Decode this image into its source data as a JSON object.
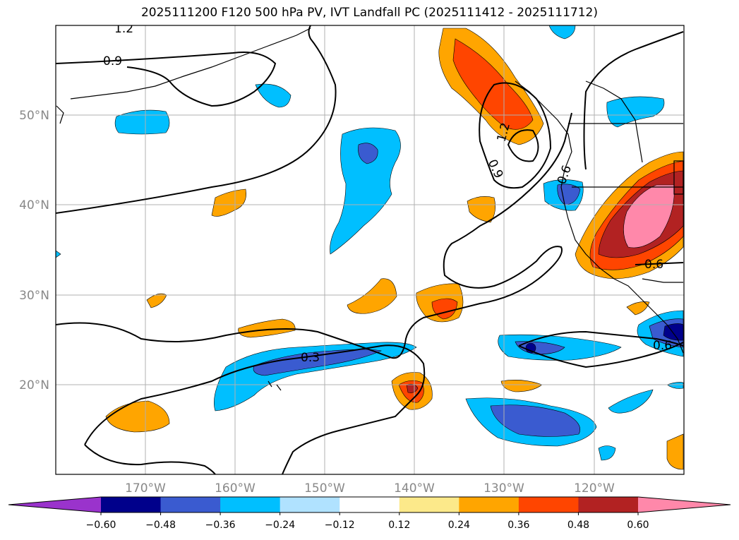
{
  "title": "2025111200 F120 500 hPa PV, IVT Landfall PC (2025111412 - 2025111712)",
  "map": {
    "lon_range": [
      -180,
      -110
    ],
    "lat_range": [
      10,
      60
    ],
    "lon_ticks": [
      -170,
      -160,
      -150,
      -140,
      -130,
      -120
    ],
    "lon_tick_labels": [
      "170°W",
      "160°W",
      "150°W",
      "140°W",
      "130°W",
      "120°W"
    ],
    "lat_ticks": [
      20,
      30,
      40,
      50
    ],
    "lat_tick_labels": [
      "20°N",
      "30°N",
      "40°N",
      "50°N"
    ],
    "contour_labels": [
      "1.2",
      "0.9",
      "1.2",
      "0.9",
      "0.6",
      "0.6",
      "0.3",
      "0.6"
    ]
  },
  "colorbar": {
    "levels": [
      -0.6,
      -0.48,
      -0.36,
      -0.24,
      -0.12,
      0.12,
      0.24,
      0.36,
      0.48,
      0.6
    ],
    "tick_labels": [
      "−0.60",
      "−0.48",
      "−0.36",
      "−0.24",
      "−0.12",
      "0.12",
      "0.24",
      "0.36",
      "0.48",
      "0.60"
    ],
    "colors": [
      "#9a33cc",
      "#00008b",
      "#3a5bd0",
      "#00bfff",
      "#b0e2ff",
      "#ffffff",
      "#fce98a",
      "#ffa500",
      "#ff4500",
      "#b22222",
      "#ff88aa"
    ]
  },
  "colors": {
    "map_border": "#000000",
    "grid": "#b0b0b0",
    "coast": "#000000",
    "contour": "#000000"
  }
}
